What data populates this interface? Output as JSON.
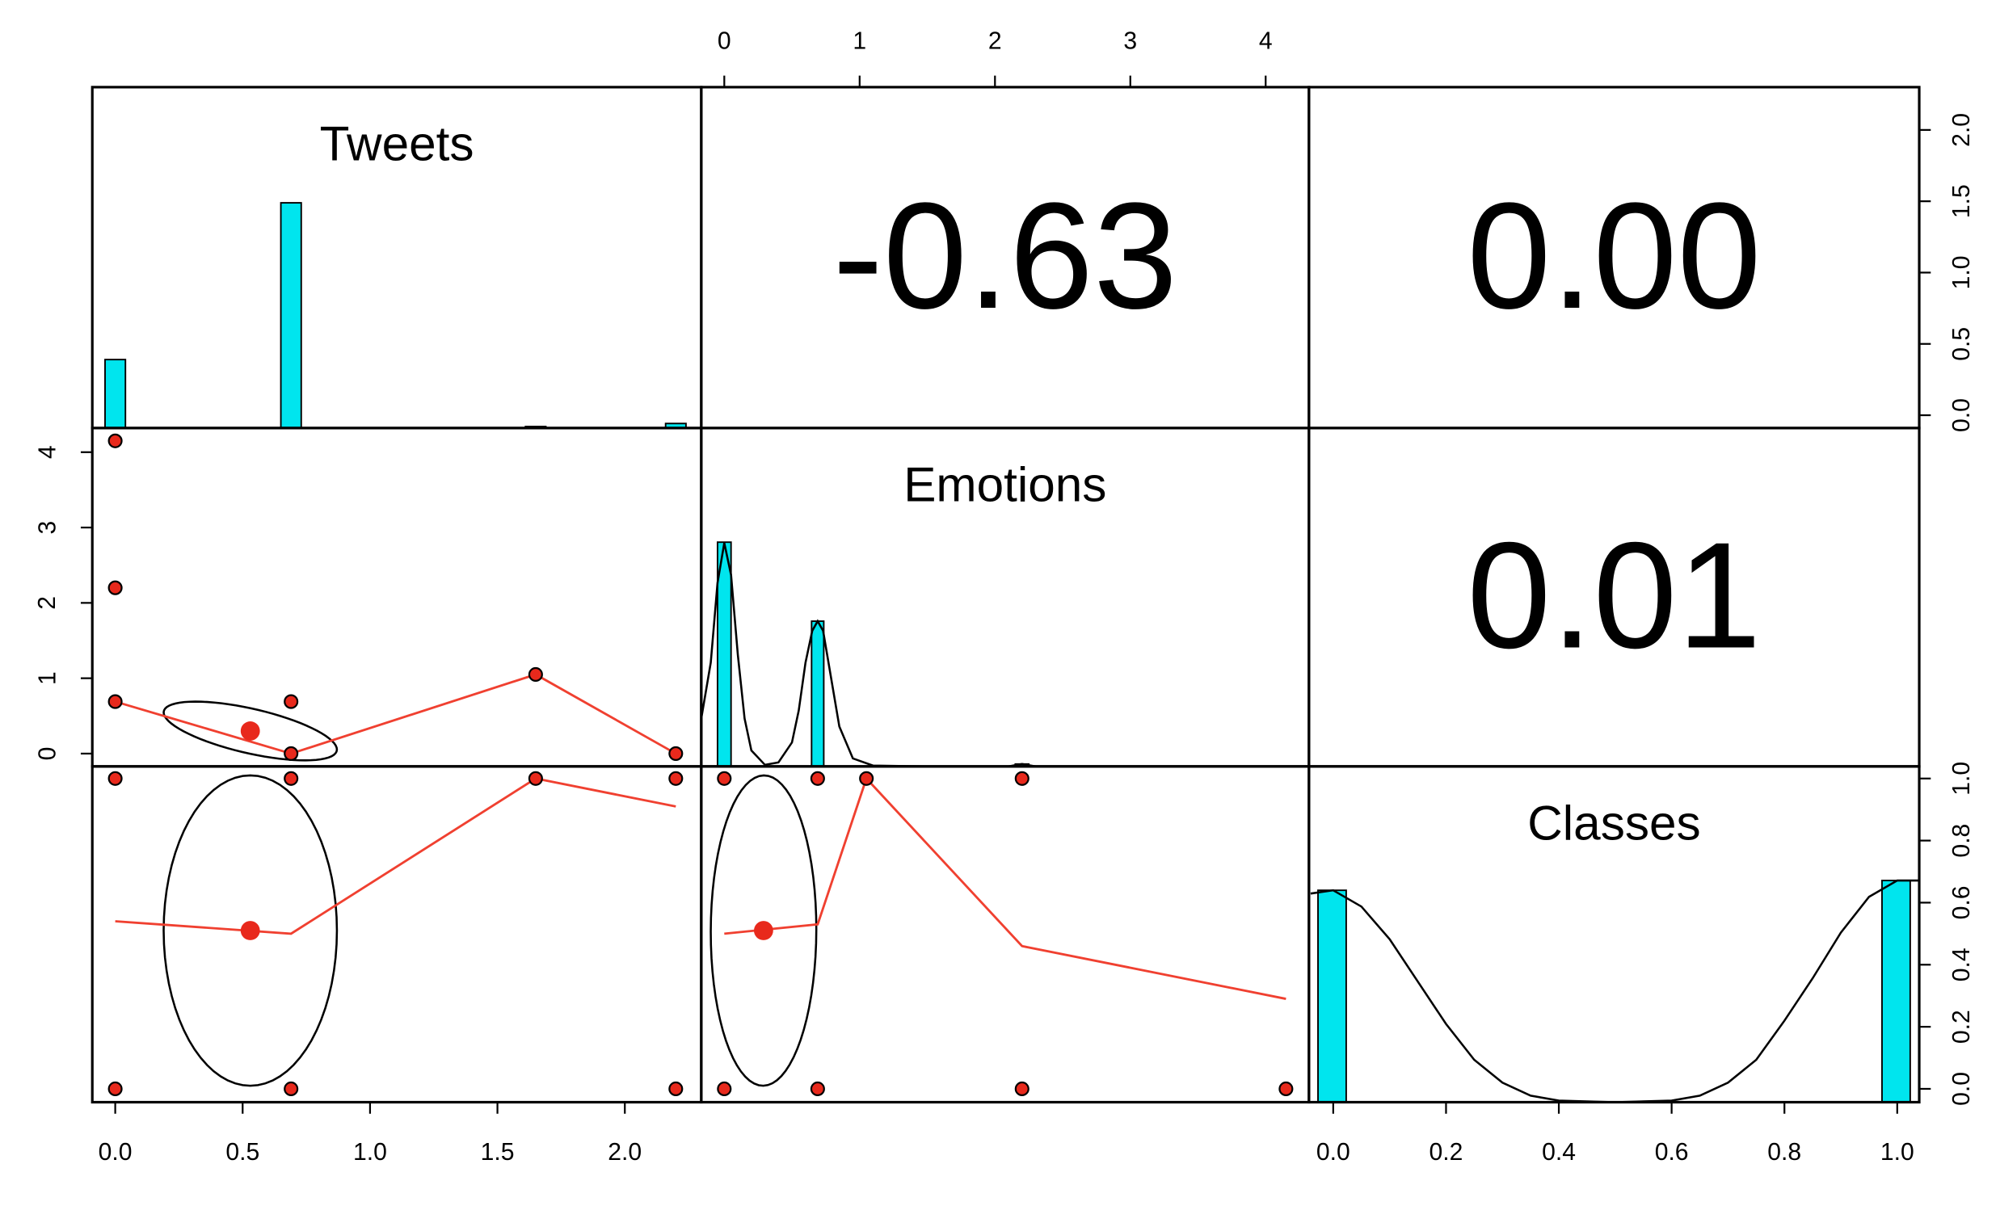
{
  "chart_data": {
    "type": "pairs",
    "hist_color": "#00e5ee",
    "point_color": "#e8291c",
    "line_color": "#f04030",
    "variables": [
      {
        "name": "Tweets",
        "lim": [
          -0.09,
          2.3
        ],
        "ticks": [
          {
            "value": 0,
            "label": "0.0"
          },
          {
            "value": 0.5,
            "label": "0.5"
          },
          {
            "value": 1,
            "label": "1.0"
          },
          {
            "value": 1.5,
            "label": "1.5"
          },
          {
            "value": 2,
            "label": "2.0"
          }
        ],
        "hist": {
          "bins": [
            -0.04,
            0.04,
            0.65,
            0.73,
            1.61,
            1.69,
            2.16,
            2.24
          ],
          "counts": [
            0.45,
            0,
            1.48,
            0,
            0.01,
            0,
            0.03
          ],
          "ylim": [
            0,
            2.24
          ]
        }
      },
      {
        "name": "Emotions",
        "lim": [
          -0.17,
          4.32
        ],
        "ticks": [
          0,
          1,
          2,
          3,
          4
        ],
        "hist": {
          "bins": [
            -0.05,
            0.05,
            0.645,
            0.735,
            2.15,
            2.25
          ],
          "counts": [
            2.81,
            0,
            1.82,
            0,
            0.03
          ],
          "ylim": [
            0,
            4.24
          ]
        },
        "density": {
          "x": [
            -0.17,
            -0.1,
            -0.05,
            0,
            0.05,
            0.1,
            0.15,
            0.2,
            0.3,
            0.4,
            0.5,
            0.55,
            0.6,
            0.65,
            0.69,
            0.73,
            0.78,
            0.85,
            0.95,
            1.1,
            1.5,
            2.1,
            2.2,
            2.3,
            3,
            4.32
          ],
          "y": [
            0.6,
            1.3,
            2.3,
            2.8,
            2.4,
            1.4,
            0.6,
            0.2,
            0.02,
            0.05,
            0.3,
            0.7,
            1.3,
            1.7,
            1.82,
            1.7,
            1.2,
            0.5,
            0.1,
            0.01,
            0,
            0,
            0.03,
            0,
            0,
            0
          ]
        }
      },
      {
        "name": "Classes",
        "lim": [
          -0.043,
          1.039
        ],
        "ticks": [
          {
            "value": 0,
            "label": "0.0"
          },
          {
            "value": 0.2,
            "label": "0.2"
          },
          {
            "value": 0.4,
            "label": "0.4"
          },
          {
            "value": 0.6,
            "label": "0.6"
          },
          {
            "value": 0.8,
            "label": "0.8"
          },
          {
            "value": 1,
            "label": "1.0"
          }
        ],
        "hist": {
          "bins": [
            -0.027,
            0.023,
            0.973,
            1.023
          ],
          "counts": [
            0.65,
            0,
            0.68
          ],
          "ylim": [
            0,
            1.03
          ]
        },
        "density": {
          "x": [
            -0.04,
            0,
            0.05,
            0.1,
            0.15,
            0.2,
            0.25,
            0.3,
            0.35,
            0.4,
            0.5,
            0.6,
            0.65,
            0.7,
            0.75,
            0.8,
            0.85,
            0.9,
            0.95,
            1,
            1.039
          ],
          "y": [
            0.64,
            0.65,
            0.6,
            0.5,
            0.37,
            0.24,
            0.13,
            0.06,
            0.02,
            0.005,
            0,
            0.005,
            0.02,
            0.06,
            0.13,
            0.25,
            0.38,
            0.52,
            0.63,
            0.68,
            0.68
          ]
        }
      }
    ],
    "correlations": {
      "values": [
        -0.63,
        0,
        0.01
      ],
      "value_labels": [
        "-0.63",
        "0.00",
        "0.01"
      ]
    },
    "scatter": [
      {
        "x": [
          0,
          0,
          0,
          0.69,
          0.69,
          1.65,
          2.2
        ],
        "y": [
          4.15,
          2.2,
          0.69,
          0.69,
          0,
          1.05,
          0
        ],
        "smooth": {
          "x": [
            0,
            0.69,
            1.65,
            2.2
          ],
          "y": [
            0.69,
            0,
            1.05,
            0
          ]
        },
        "mean": {
          "x": 0.53,
          "y": 0.3
        },
        "ellipse": {
          "sx": 0.34,
          "sy": 0.39,
          "r": -0.63
        }
      },
      {
        "x": [
          0,
          0.69,
          1.65,
          2.2,
          0,
          0.69,
          2.2
        ],
        "y": [
          1,
          1,
          1,
          1,
          0,
          0,
          0
        ],
        "smooth": {
          "x": [
            0,
            0.69,
            1.65,
            2.2
          ],
          "y": [
            0.54,
            0.5,
            1,
            0.91
          ]
        },
        "mean": {
          "x": 0.53,
          "y": 0.51
        },
        "ellipse": {
          "sx": 0.34,
          "sy": 0.5,
          "r": 0
        }
      },
      {
        "x": [
          0,
          0.69,
          1.05,
          2.2,
          0,
          0.69,
          2.2,
          4.15
        ],
        "y": [
          1,
          1,
          1,
          1,
          0,
          0,
          0,
          0
        ],
        "smooth": {
          "x": [
            0,
            0.69,
            1.05,
            2.2,
            4.15
          ],
          "y": [
            0.5,
            0.53,
            1,
            0.46,
            0.29
          ]
        },
        "mean": {
          "x": 0.29,
          "y": 0.51
        },
        "ellipse": {
          "sx": 0.39,
          "sy": 0.5,
          "r": 0.01
        }
      }
    ]
  }
}
